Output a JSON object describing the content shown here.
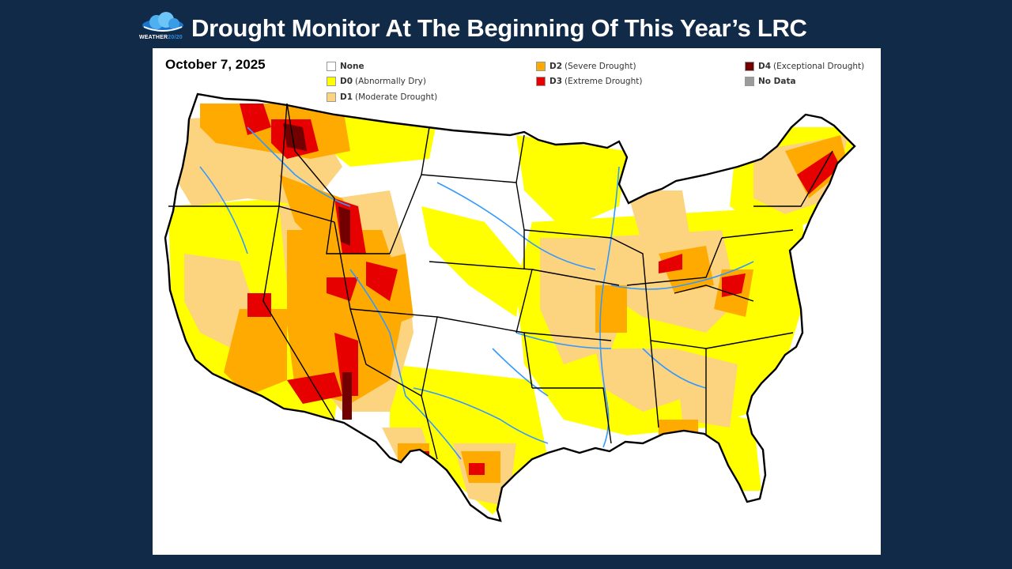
{
  "header": {
    "logo": {
      "icon": "cloud-icon",
      "text_main": "WEATHER",
      "text_accent": "20/20"
    },
    "title": "Drought Monitor At The Beginning Of This Year’s LRC"
  },
  "map": {
    "date": "October 7, 2025",
    "legend": [
      {
        "code": "None",
        "label": "",
        "color": "#ffffff"
      },
      {
        "code": "D0",
        "label": "(Abnormally Dry)",
        "color": "#ffff00"
      },
      {
        "code": "D1",
        "label": "(Moderate Drought)",
        "color": "#fcd37f"
      },
      {
        "code": "D2",
        "label": "(Severe Drought)",
        "color": "#ffaa00"
      },
      {
        "code": "D3",
        "label": "(Extreme Drought)",
        "color": "#e60000"
      },
      {
        "code": "D4",
        "label": "(Exceptional Drought)",
        "color": "#730000"
      },
      {
        "code": "No Data",
        "label": "",
        "color": "#9b9b9b"
      }
    ],
    "colors": {
      "river": "#3399ff",
      "border": "#000000"
    }
  }
}
